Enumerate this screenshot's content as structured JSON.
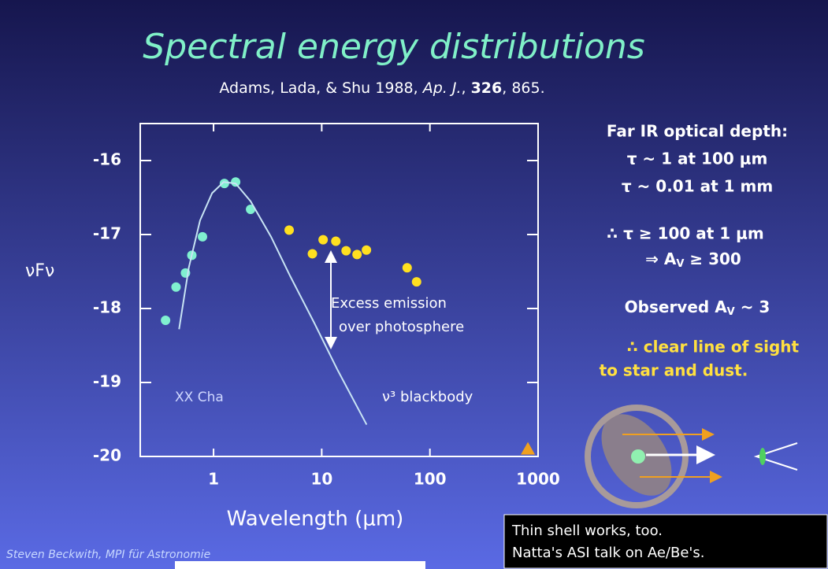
{
  "title": "Spectral energy distributions",
  "citation": [
    "Adams, Lada, & Shu 1988, ",
    "Ap. J.",
    ", ",
    "326",
    ", 865."
  ],
  "notes": {
    "heading": "Far IR optical depth:",
    "line1": "τ ~ 1 at 100 μm",
    "line2": "τ ~ 0.01 at 1 mm",
    "line3": "∴ τ ≥ 100 at 1 μm",
    "line4": [
      "⇒ A",
      "V",
      " ≥ 300"
    ],
    "line5": [
      "Observed A",
      "V",
      " ~ 3"
    ],
    "line6": "∴ clear line of sight",
    "line7": "to star and dust."
  },
  "footer": "Steven Beckwith, MPI für Astronomie",
  "box": [
    "Thin shell works, too.",
    "Natta's ASI talk on Ae/Be's."
  ],
  "chart_data": {
    "type": "scatter",
    "x_label": "Wavelength (μm)",
    "y_label": "νFν",
    "log_x": true,
    "xlim": [
      0.21,
      1000
    ],
    "xticks": [
      1,
      10,
      100,
      1000
    ],
    "ylim": [
      -20,
      -15.5
    ],
    "yticks": [
      -20,
      -19,
      -18,
      -17,
      -16
    ],
    "annotations": [
      "Excess emission",
      "over photosphere",
      "XX Cha",
      "ν³ blackbody"
    ],
    "series": [
      {
        "type": "scatter",
        "color": "#80f0d0",
        "x": [
          0.36,
          0.45,
          0.55,
          0.63,
          0.79,
          1.26,
          1.6,
          2.2
        ],
        "values": [
          -18.16,
          -17.71,
          -17.52,
          -17.28,
          -17.03,
          -16.31,
          -16.29,
          -16.66
        ]
      },
      {
        "type": "scatter",
        "color": "#ffe020",
        "x": [
          5.0,
          8.2,
          10.3,
          13.5,
          16.8,
          21.2,
          25.9,
          61.6,
          75.3
        ],
        "values": [
          -16.94,
          -17.26,
          -17.07,
          -17.09,
          -17.22,
          -17.27,
          -17.21,
          -17.45,
          -17.64
        ]
      },
      {
        "type": "scatter",
        "marker": "triangle",
        "color": "#f0a020",
        "x": [
          805
        ],
        "values": [
          -19.9
        ]
      },
      {
        "type": "line",
        "color": "#c8e4f4",
        "x": [
          0.48,
          0.59,
          0.75,
          0.97,
          1.24,
          1.6,
          2.2,
          3.4,
          5.1,
          8.5,
          14,
          26
        ],
        "values": [
          -18.28,
          -17.45,
          -16.81,
          -16.44,
          -16.29,
          -16.31,
          -16.55,
          -17.03,
          -17.56,
          -18.19,
          -18.83,
          -19.57
        ]
      }
    ]
  }
}
